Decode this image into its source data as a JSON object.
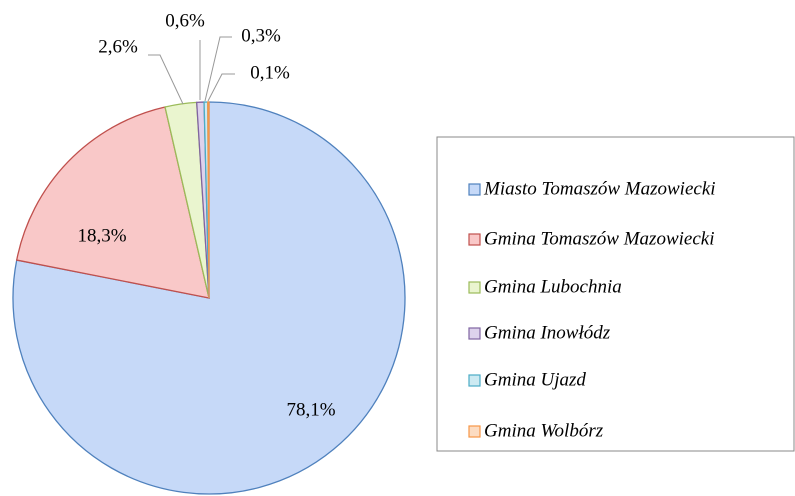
{
  "chart_data": {
    "type": "pie",
    "categories": [
      "Miasto Tomaszów Mazowiecki",
      "Gmina Tomaszów Mazowiecki",
      "Gmina Lubochnia",
      "Gmina Inowłódz",
      "Gmina Ujazd",
      "Gmina Wolbórz"
    ],
    "values": [
      78.1,
      18.3,
      2.6,
      0.6,
      0.3,
      0.1
    ],
    "value_labels": [
      "78,1%",
      "18,3%",
      "2,6%",
      "0,6%",
      "0,3%",
      "0,1%"
    ],
    "colors": [
      "#4f81bd",
      "#c0504d",
      "#9bbb59",
      "#8064a2",
      "#4bacc6",
      "#f79646"
    ],
    "legend": "right"
  }
}
